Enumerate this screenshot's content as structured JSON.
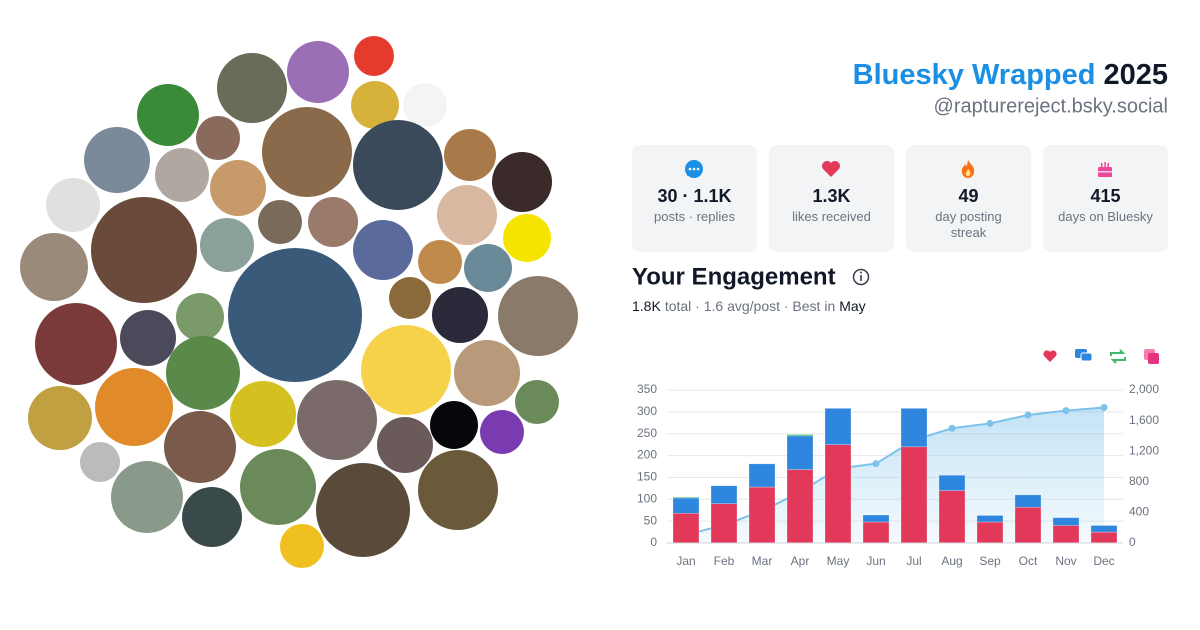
{
  "header": {
    "title": "Bluesky Wrapped",
    "year": "2025",
    "handle": "@rapturereject.bsky.social"
  },
  "stats": [
    {
      "value": "30 · 1.1K",
      "label": [
        "posts · replies"
      ]
    },
    {
      "value": "1.3K",
      "label": [
        "likes received"
      ]
    },
    {
      "value": 49,
      "label": [
        "day posting",
        "streak"
      ]
    },
    {
      "value": 415,
      "label": [
        "days on Bluesky"
      ]
    }
  ],
  "engagement": {
    "title": "Your Engagement",
    "total": "1.8K",
    "summary": "total · 1.6 avg/post · Best in",
    "best": "May"
  },
  "chart_data": {
    "type": "bar",
    "stacked": true,
    "categories": [
      "Jan",
      "Feb",
      "Mar",
      "Apr",
      "May",
      "Jun",
      "Jul",
      "Aug",
      "Sep",
      "Oct",
      "Nov",
      "Dec"
    ],
    "series": [
      {
        "color": "#e2395b",
        "values": [
          68,
          90,
          128,
          168,
          225,
          48,
          220,
          120,
          48,
          82,
          40,
          25
        ]
      },
      {
        "color": "#2f86de",
        "values": [
          35,
          41,
          53,
          77,
          83,
          16,
          88,
          35,
          15,
          28,
          18,
          15
        ]
      },
      {
        "color": "#3fba6a",
        "values": [
          2,
          0,
          0,
          3,
          0,
          0,
          0,
          0,
          0,
          0,
          0,
          0
        ]
      },
      {
        "type": "line",
        "axis": "y2",
        "area": true,
        "color": "#7cc2ea",
        "values": [
          105,
          236,
          417,
          665,
          973,
          1037,
          1345,
          1500,
          1563,
          1673,
          1731,
          1771
        ]
      }
    ],
    "ylim": [
      0,
      350
    ],
    "yticks": [
      0,
      50,
      100,
      150,
      200,
      250,
      300,
      350
    ],
    "y2lim": [
      0,
      2000
    ],
    "y2ticks": [
      0,
      400,
      800,
      {
        "value": 1200,
        "label": "1,200"
      },
      {
        "value": 1600,
        "label": "1,600"
      },
      {
        "value": 2000,
        "label": "2,000"
      }
    ],
    "grid": true
  }
}
